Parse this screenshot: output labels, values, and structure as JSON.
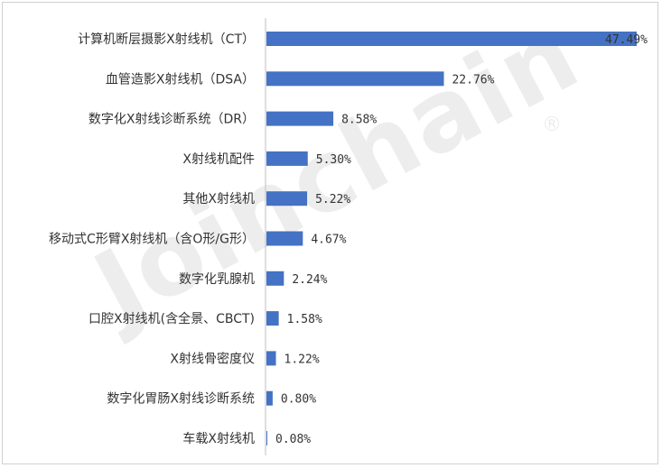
{
  "chart_data": {
    "type": "bar",
    "orientation": "horizontal",
    "categories": [
      "计算机断层摄影X射线机（CT）",
      "血管造影X射线机（DSA）",
      "数字化X射线诊断系统（DR）",
      "X射线机配件",
      "其他X射线机",
      "移动式C形臂X射线机（含O形/G形）",
      "数字化乳腺机",
      "口腔X射线机(含全景、CBCT)",
      "X射线骨密度仪",
      "数字化胃肠X射线诊断系统",
      "车载X射线机"
    ],
    "values": [
      47.49,
      22.76,
      8.58,
      5.3,
      5.22,
      4.67,
      2.24,
      1.58,
      1.22,
      0.8,
      0.08
    ],
    "value_labels": [
      "47.49%",
      "22.76%",
      "8.58%",
      "5.30%",
      "5.22%",
      "4.67%",
      "2.24%",
      "1.58%",
      "1.22%",
      "0.80%",
      "0.08%"
    ],
    "xlim": [
      0,
      47.49
    ],
    "grid": false,
    "legend": "none",
    "bar_color": "#4472c4"
  },
  "watermark": {
    "text": "Joinchain",
    "mark": "®"
  }
}
